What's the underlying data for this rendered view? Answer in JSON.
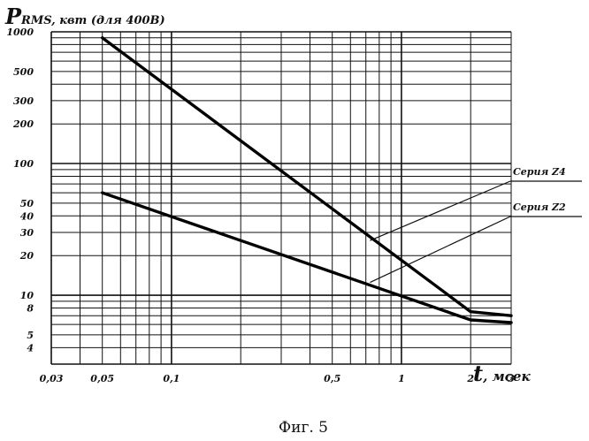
{
  "chart_data": {
    "type": "line",
    "title": "",
    "ylabel": "P",
    "ylabel_sub": "RMS, квт (для 400В)",
    "xlabel": "t",
    "xlabel_sub": ", мсек",
    "x_scale": "log",
    "y_scale": "log",
    "xlim": [
      0.03,
      3
    ],
    "ylim": [
      3,
      1000
    ],
    "x_ticks": [
      {
        "value": 0.03,
        "label": "0,03"
      },
      {
        "value": 0.05,
        "label": "0,05"
      },
      {
        "value": 0.1,
        "label": "0,1"
      },
      {
        "value": 0.5,
        "label": "0,5"
      },
      {
        "value": 1,
        "label": "1"
      },
      {
        "value": 2,
        "label": "2"
      },
      {
        "value": 3,
        "label": "3"
      }
    ],
    "y_ticks": [
      {
        "value": 1000,
        "label": "1000"
      },
      {
        "value": 500,
        "label": "500"
      },
      {
        "value": 300,
        "label": "300"
      },
      {
        "value": 200,
        "label": "200"
      },
      {
        "value": 100,
        "label": "100"
      },
      {
        "value": 50,
        "label": "50"
      },
      {
        "value": 40,
        "label": "40"
      },
      {
        "value": 30,
        "label": "30"
      },
      {
        "value": 20,
        "label": "20"
      },
      {
        "value": 10,
        "label": "10"
      },
      {
        "value": 8,
        "label": "8"
      },
      {
        "value": 5,
        "label": "5"
      },
      {
        "value": 4,
        "label": "4"
      }
    ],
    "grid": true,
    "series": [
      {
        "name": "Серия Z4",
        "x": [
          0.05,
          2,
          3
        ],
        "y": [
          900,
          7.5,
          7
        ]
      },
      {
        "name": "Серия Z2",
        "x": [
          0.05,
          2,
          3
        ],
        "y": [
          60,
          6.5,
          6.2
        ]
      }
    ],
    "annotations": [
      {
        "series": "Серия Z4",
        "point_x": 0.73,
        "point_y": 26,
        "label": "Серия Z4"
      },
      {
        "series": "Серия Z2",
        "point_x": 0.73,
        "point_y": 12.5,
        "label": "Серия Z2"
      }
    ]
  },
  "caption": "Фиг. 5"
}
